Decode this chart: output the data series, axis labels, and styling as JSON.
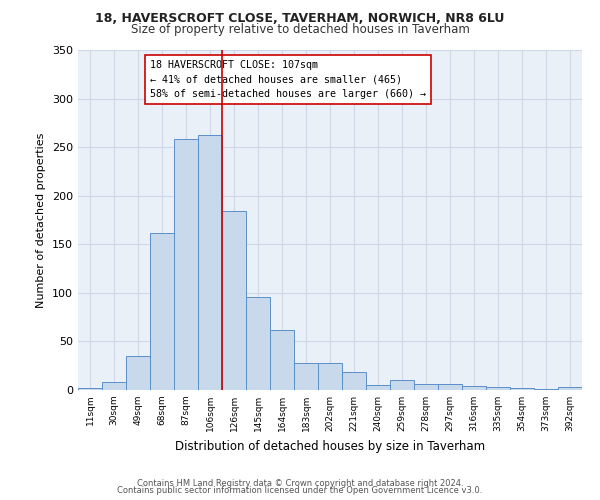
{
  "title1": "18, HAVERSCROFT CLOSE, TAVERHAM, NORWICH, NR8 6LU",
  "title2": "Size of property relative to detached houses in Taverham",
  "xlabel": "Distribution of detached houses by size in Taverham",
  "ylabel": "Number of detached properties",
  "footer1": "Contains HM Land Registry data © Crown copyright and database right 2024.",
  "footer2": "Contains public sector information licensed under the Open Government Licence v3.0.",
  "annotation_line1": "18 HAVERSCROFT CLOSE: 107sqm",
  "annotation_line2": "← 41% of detached houses are smaller (465)",
  "annotation_line3": "58% of semi-detached houses are larger (660) →",
  "bar_color": "#c9d9ec",
  "bar_edge_color": "#5b8fc9",
  "grid_color": "#d0d8e8",
  "bg_color": "#eaf0f8",
  "ref_line_color": "#cc0000",
  "categories": [
    "11sqm",
    "30sqm",
    "49sqm",
    "68sqm",
    "87sqm",
    "106sqm",
    "126sqm",
    "145sqm",
    "164sqm",
    "183sqm",
    "202sqm",
    "221sqm",
    "240sqm",
    "259sqm",
    "278sqm",
    "297sqm",
    "316sqm",
    "335sqm",
    "354sqm",
    "373sqm",
    "392sqm"
  ],
  "values": [
    2,
    8,
    35,
    162,
    258,
    263,
    184,
    96,
    62,
    28,
    28,
    19,
    5,
    10,
    6,
    6,
    4,
    3,
    2,
    1,
    3
  ],
  "ylim": [
    0,
    350
  ],
  "yticks": [
    0,
    50,
    100,
    150,
    200,
    250,
    300,
    350
  ],
  "ref_bar_index": 5
}
